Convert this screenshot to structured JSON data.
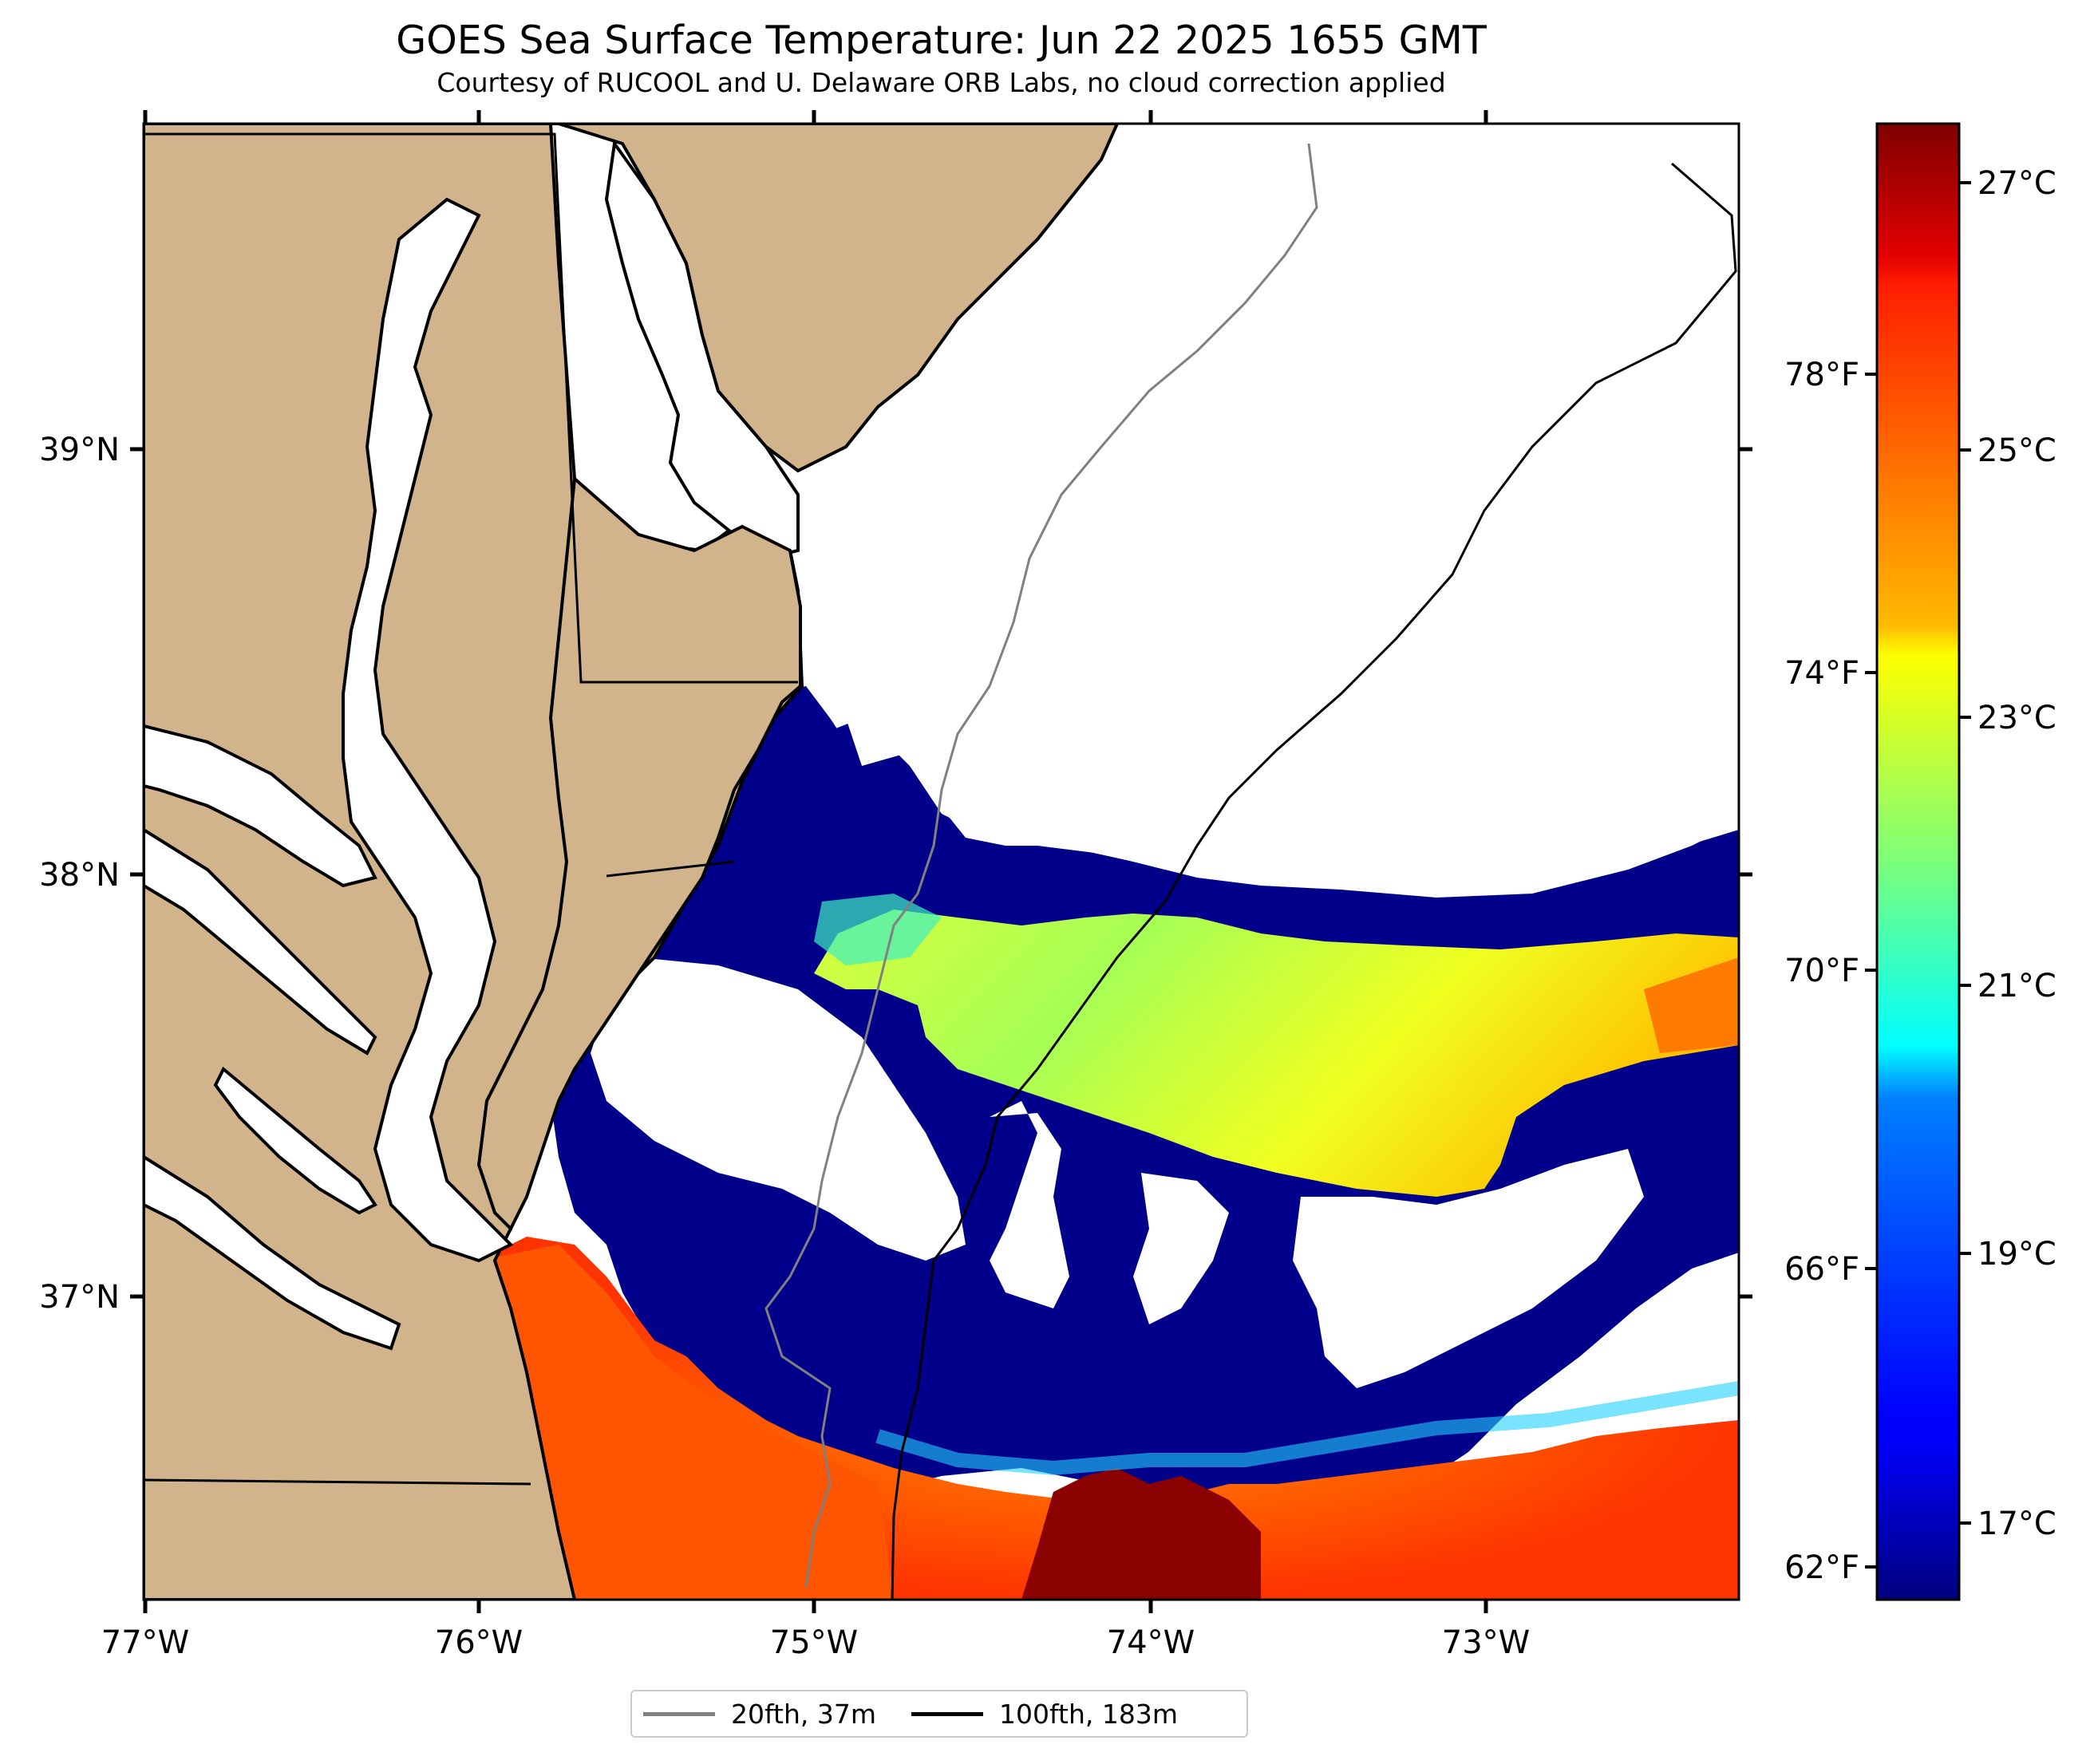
{
  "title": "GOES Sea Surface Temperature: Jun 22 2025 1655 GMT",
  "subtitle": "Courtesy of RUCOOL and U. Delaware ORB Labs, no cloud correction applied",
  "map": {
    "lon_range": [
      -77.0,
      -72.25
    ],
    "lat_range": [
      36.25,
      39.75
    ],
    "lon_ticks": [
      "77°W",
      "76°W",
      "75°W",
      "74°W",
      "73°W"
    ],
    "lat_ticks": [
      "39°N",
      "38°N",
      "37°N"
    ],
    "land_color": "#d2b48c",
    "no_data_color": "#ffffff",
    "colormap": "jet"
  },
  "colorbar": {
    "celsius_ticks": [
      "27°C",
      "25°C",
      "23°C",
      "21°C",
      "19°C",
      "17°C"
    ],
    "fahrenheit_ticks": [
      "78°F",
      "74°F",
      "70°F",
      "66°F",
      "62°F"
    ],
    "min_c": 16.2,
    "max_c": 27.3
  },
  "legend": {
    "items": [
      {
        "label": "20fth, 37m",
        "color": "#808080"
      },
      {
        "label": "100fth, 183m",
        "color": "#000000"
      }
    ]
  }
}
